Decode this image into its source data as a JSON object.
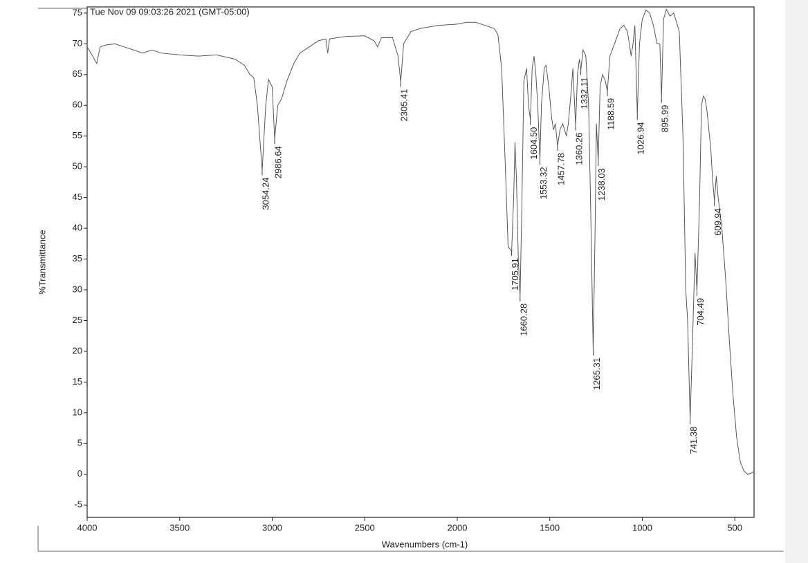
{
  "chart_data": {
    "type": "line",
    "title": "Tue Nov 09 09:03:26 2021 (GMT-05:00)",
    "x_label": "Wavenumbers (cm-1)",
    "y_label": "%Transmittance",
    "xlim": [
      4000,
      396
    ],
    "ylim": [
      -7,
      76
    ],
    "xticks": [
      4000,
      3500,
      3000,
      2500,
      2000,
      1500,
      1000,
      500
    ],
    "yticks": [
      -5,
      0,
      5,
      10,
      15,
      20,
      25,
      30,
      35,
      40,
      45,
      50,
      55,
      60,
      65,
      70,
      75
    ],
    "x": [
      4000,
      3980,
      3948,
      3930,
      3900,
      3850,
      3800,
      3750,
      3700,
      3650,
      3600,
      3500,
      3400,
      3300,
      3200,
      3150,
      3120,
      3100,
      3080,
      3054.24,
      3035,
      3020,
      3000,
      2986.64,
      2970,
      2950,
      2920,
      2880,
      2850,
      2800,
      2750,
      2710,
      2700,
      2690,
      2650,
      2600,
      2500,
      2450,
      2430,
      2410,
      2350,
      2320,
      2305.41,
      2290,
      2250,
      2200,
      2100,
      2000,
      1950,
      1900,
      1850,
      1800,
      1780,
      1760,
      1740,
      1725,
      1705.91,
      1695,
      1688,
      1680,
      1670,
      1660.28,
      1650,
      1640,
      1625,
      1615,
      1604.5,
      1595,
      1585,
      1575,
      1565,
      1553.32,
      1545,
      1530,
      1520,
      1505,
      1490,
      1480,
      1470,
      1457.78,
      1445,
      1430,
      1410,
      1400,
      1385,
      1375,
      1360.26,
      1350,
      1340,
      1332.11,
      1320,
      1305,
      1290,
      1280,
      1265.31,
      1255,
      1248,
      1238.03,
      1228,
      1215,
      1200,
      1188.59,
      1175,
      1150,
      1120,
      1100,
      1080,
      1060,
      1050,
      1040,
      1026.94,
      1015,
      1000,
      980,
      960,
      940,
      920,
      905,
      895.99,
      885,
      870,
      850,
      830,
      800,
      780,
      765,
      755,
      741.38,
      730,
      715,
      704.49,
      690,
      680,
      670,
      660,
      650,
      630,
      620,
      609.94,
      600,
      590,
      570,
      550,
      530,
      510,
      490,
      470,
      450,
      430,
      410,
      396
    ],
    "series": [
      {
        "color": "#555555",
        "values": [
          69.5,
          68.5,
          66.8,
          69.5,
          69.8,
          70,
          69.5,
          69,
          68.5,
          69,
          68.5,
          68.2,
          68,
          68.2,
          67.5,
          66.5,
          65,
          64.5,
          60,
          49.4,
          60,
          64.2,
          63,
          54.5,
          60,
          61,
          64,
          67,
          68.5,
          69.5,
          70.5,
          70.8,
          68.5,
          70.8,
          71,
          71.2,
          71.3,
          70.5,
          69.5,
          71,
          71,
          68,
          63.8,
          70,
          72,
          72.5,
          73,
          73.2,
          73.5,
          73.5,
          73,
          72.5,
          71.5,
          66,
          50,
          37,
          36.3,
          45,
          54,
          48,
          35,
          28.9,
          45,
          64,
          66,
          60,
          57.6,
          66,
          68,
          65,
          60,
          51.1,
          60,
          66,
          66.5,
          63,
          58,
          56,
          57,
          53.4,
          56,
          57,
          55,
          57,
          62,
          66,
          56.7,
          65,
          67.5,
          65.7,
          69,
          68,
          60,
          45,
          20.1,
          40,
          57,
          50.9,
          63,
          65,
          64,
          62.3,
          68,
          70,
          72.5,
          73,
          72,
          68,
          70,
          73,
          58.4,
          70,
          74,
          75.5,
          75,
          73,
          70,
          70,
          61.2,
          74,
          75.6,
          74.5,
          75,
          72,
          55,
          30,
          25,
          8.9,
          20,
          36,
          29.8,
          45,
          60,
          61.5,
          61,
          59,
          53,
          48,
          44.4,
          48.5,
          45,
          40,
          32,
          22,
          13,
          6,
          2,
          0.5,
          0,
          0.2,
          0.5
        ]
      }
    ],
    "annotations": [
      {
        "label": "3054.24",
        "x": 3054.24,
        "y": 49.4
      },
      {
        "label": "2986.64",
        "x": 2986.64,
        "y": 54.5
      },
      {
        "label": "2305.41",
        "x": 2305.41,
        "y": 63.8
      },
      {
        "label": "1705.91",
        "x": 1705.91,
        "y": 36.3
      },
      {
        "label": "1660.28",
        "x": 1660.28,
        "y": 28.9
      },
      {
        "label": "1604.50",
        "x": 1604.5,
        "y": 57.6
      },
      {
        "label": "1553.32",
        "x": 1553.32,
        "y": 51.1
      },
      {
        "label": "1457.78",
        "x": 1457.78,
        "y": 53.4
      },
      {
        "label": "1360.26",
        "x": 1360.26,
        "y": 56.7
      },
      {
        "label": "1332.11",
        "x": 1332.11,
        "y": 65.7
      },
      {
        "label": "1265.31",
        "x": 1265.31,
        "y": 20.1
      },
      {
        "label": "1238.03",
        "x": 1238.03,
        "y": 50.9
      },
      {
        "label": "1188.59",
        "x": 1188.59,
        "y": 62.3
      },
      {
        "label": "1026.94",
        "x": 1026.94,
        "y": 58.4
      },
      {
        "label": "895.99",
        "x": 895.99,
        "y": 61.2
      },
      {
        "label": "741.38",
        "x": 741.38,
        "y": 8.9
      },
      {
        "label": "704.49",
        "x": 704.49,
        "y": 29.8
      },
      {
        "label": "609.94",
        "x": 609.94,
        "y": 44.4
      }
    ]
  }
}
